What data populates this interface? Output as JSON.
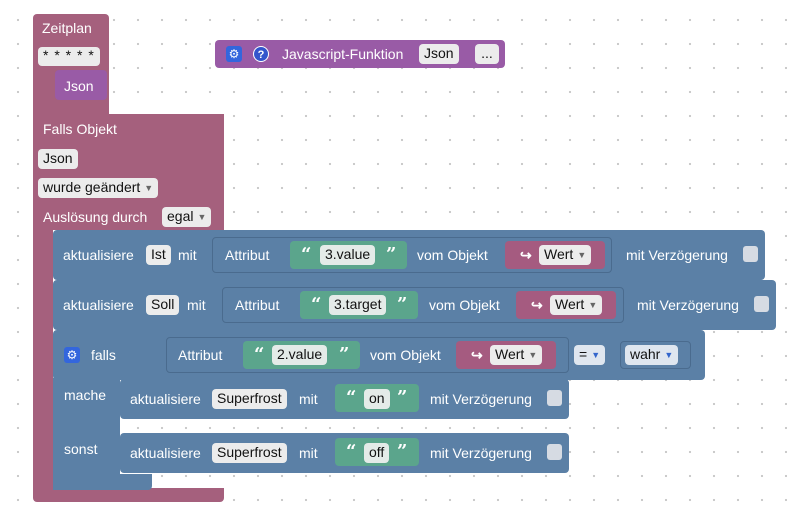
{
  "colors": {
    "event": "#a5607d",
    "action": "#5b80a6",
    "text": "#5ba58c",
    "variable": "#a55b80",
    "function": "#995ba6"
  },
  "schedule": {
    "title": "Zeitplan",
    "cron": "* * * * *",
    "variable": "Json"
  },
  "function_block": {
    "title": "Javascript-Funktion",
    "param": "Json",
    "more": "...",
    "icons": [
      "gear-icon",
      "help-icon"
    ]
  },
  "trigger": {
    "title": "Falls Objekt",
    "object": "Json",
    "condition": "wurde geändert",
    "trigger_label": "Auslösung durch",
    "trigger_value": "egal"
  },
  "statements": [
    {
      "action": "aktualisiere",
      "target": "Ist",
      "with": "mit",
      "attr_label": "Attribut",
      "attr_value": "3.value",
      "from_label": "vom Objekt",
      "var": "Wert",
      "delay": "mit Verzögerung"
    },
    {
      "action": "aktualisiere",
      "target": "Soll",
      "with": "mit",
      "attr_label": "Attribut",
      "attr_value": "3.target",
      "from_label": "vom Objekt",
      "var": "Wert",
      "delay": "mit Verzögerung"
    }
  ],
  "if_block": {
    "if_label": "falls",
    "attr_label": "Attribut",
    "attr_value": "2.value",
    "from_label": "vom Objekt",
    "var": "Wert",
    "operator": "=",
    "compare": "wahr",
    "do_label": "mache",
    "else_label": "sonst",
    "then_stmt": {
      "action": "aktualisiere",
      "target": "Superfrost",
      "with": "mit",
      "value": "on",
      "delay": "mit Verzögerung"
    },
    "else_stmt": {
      "action": "aktualisiere",
      "target": "Superfrost",
      "with": "mit",
      "value": "off",
      "delay": "mit Verzögerung"
    }
  }
}
